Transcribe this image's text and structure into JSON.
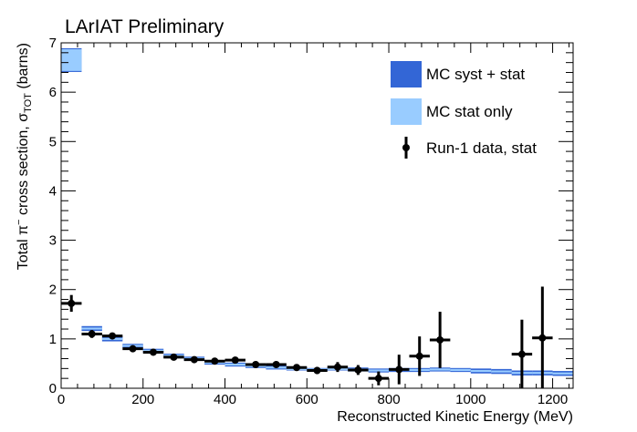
{
  "chart_data": {
    "type": "scatter",
    "title": "LArIAT Preliminary",
    "xlabel": "Reconstructed Kinetic Energy (MeV)",
    "ylabel": {
      "prefix": "Total π",
      "sup": "−",
      "middle": " cross section, σ",
      "sub": "TOT",
      "suffix": " (barns)"
    },
    "xlim": [
      0,
      1250
    ],
    "ylim": [
      0,
      7
    ],
    "x_ticks": [
      0,
      200,
      400,
      600,
      800,
      1000,
      1200
    ],
    "y_ticks": [
      0,
      1,
      2,
      3,
      4,
      5,
      6,
      7
    ],
    "x_tick_labels": [
      "0",
      "200",
      "400",
      "600",
      "800",
      "1000",
      "1200"
    ],
    "y_tick_labels": [
      "0",
      "1",
      "2",
      "3",
      "4",
      "5",
      "6",
      "7"
    ],
    "grid": false,
    "legend_position": "top-right",
    "colors": {
      "syst_band": "#3366d6",
      "stat_band": "#99ccff",
      "data": "#000000"
    },
    "legend": [
      {
        "label": "MC syst + stat",
        "kind": "box",
        "color": "#3366d6"
      },
      {
        "label": "MC stat only",
        "kind": "box",
        "color": "#99ccff"
      },
      {
        "label": "Run-1 data, stat",
        "kind": "marker",
        "color": "#000000"
      }
    ],
    "mc_bins": {
      "x_low": [
        0,
        50,
        100,
        150,
        200,
        250,
        300,
        350,
        400,
        450,
        500,
        550,
        600,
        650,
        700,
        750,
        800,
        850,
        900,
        950,
        1000,
        1050,
        1100,
        1150,
        1200
      ],
      "x_high": [
        50,
        100,
        150,
        200,
        250,
        300,
        350,
        400,
        450,
        500,
        550,
        600,
        650,
        700,
        750,
        800,
        850,
        900,
        950,
        1000,
        1050,
        1100,
        1150,
        1200,
        1250
      ],
      "value": [
        6.65,
        1.21,
        1.0,
        0.86,
        0.76,
        0.66,
        0.6,
        0.52,
        0.48,
        0.45,
        0.42,
        0.39,
        0.38,
        0.39,
        0.38,
        0.36,
        0.37,
        0.37,
        0.38,
        0.37,
        0.35,
        0.34,
        0.31,
        0.31,
        0.3
      ],
      "syst_err": [
        0.24,
        0.05,
        0.05,
        0.04,
        0.04,
        0.04,
        0.04,
        0.04,
        0.04,
        0.04,
        0.04,
        0.03,
        0.03,
        0.03,
        0.04,
        0.04,
        0.04,
        0.04,
        0.04,
        0.04,
        0.05,
        0.05,
        0.05,
        0.05,
        0.05
      ],
      "stat_err": [
        0.22,
        0.02,
        0.02,
        0.02,
        0.02,
        0.02,
        0.02,
        0.02,
        0.02,
        0.02,
        0.02,
        0.02,
        0.02,
        0.02,
        0.02,
        0.02,
        0.02,
        0.02,
        0.02,
        0.02,
        0.02,
        0.02,
        0.02,
        0.02,
        0.02
      ]
    },
    "data_points": {
      "x": [
        25,
        75,
        125,
        175,
        225,
        275,
        325,
        375,
        425,
        475,
        525,
        575,
        625,
        675,
        725,
        775,
        825,
        875,
        925,
        1125,
        1175
      ],
      "y": [
        1.72,
        1.1,
        1.06,
        0.8,
        0.73,
        0.63,
        0.58,
        0.55,
        0.57,
        0.48,
        0.48,
        0.42,
        0.36,
        0.43,
        0.37,
        0.2,
        0.38,
        0.65,
        0.98,
        0.69,
        1.02
      ],
      "yerr": [
        0.17,
        0.08,
        0.06,
        0.06,
        0.05,
        0.05,
        0.05,
        0.05,
        0.05,
        0.05,
        0.05,
        0.06,
        0.07,
        0.1,
        0.1,
        0.14,
        0.3,
        0.4,
        0.57,
        0.7,
        1.04
      ],
      "xerr": 25
    }
  }
}
